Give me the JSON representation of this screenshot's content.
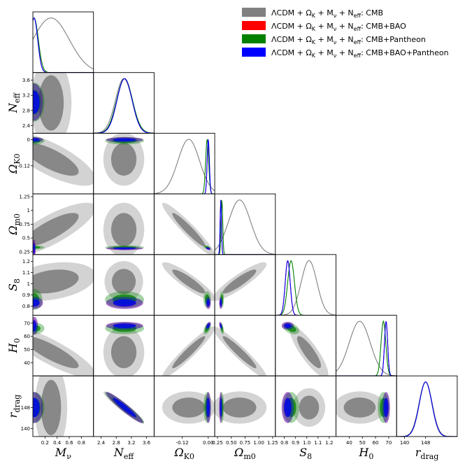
{
  "chart_data": {
    "type": "triangle-corner-plot",
    "parameters": [
      {
        "name": "M_nu",
        "label": "M",
        "sub": "ν",
        "range": [
          0,
          1.0
        ],
        "ticks": [
          0.2,
          0.4,
          0.6,
          0.8
        ],
        "tick_labels": [
          "0.2",
          "0.4",
          "0.6",
          "0.8"
        ]
      },
      {
        "name": "N_eff",
        "label": "N",
        "sub": "eff",
        "range": [
          2.2,
          3.8
        ],
        "ticks": [
          2.4,
          2.8,
          3.2,
          3.6
        ],
        "tick_labels": [
          "2.4",
          "2.8",
          "3.2",
          "3.6"
        ]
      },
      {
        "name": "Omega_K0",
        "label": "Ω",
        "sub": "K0",
        "range": [
          -0.25,
          0.03
        ],
        "ticks": [
          -0.12,
          0.0
        ],
        "tick_labels": [
          "-0.12",
          "0"
        ]
      },
      {
        "name": "Omega_m0",
        "label": "Ω",
        "sub": "m0",
        "range": [
          0.2,
          1.3
        ],
        "ticks": [
          0.25,
          0.5,
          0.75,
          1.0,
          1.25
        ],
        "tick_labels": [
          "0.25",
          "0.5",
          "0.75",
          "1",
          "1.25"
        ]
      },
      {
        "name": "S_8",
        "label": "S",
        "sub": "8",
        "range": [
          0.72,
          1.26
        ],
        "ticks": [
          0.8,
          0.9,
          1.0,
          1.1,
          1.2
        ],
        "tick_labels": [
          "0.8",
          "0.9",
          "1",
          "1.1",
          "1.2"
        ]
      },
      {
        "name": "H_0",
        "label": "H",
        "sub": "0",
        "range": [
          30,
          76
        ],
        "ticks": [
          40,
          50,
          60,
          70
        ],
        "tick_labels": [
          "40",
          "50",
          "60",
          "70"
        ]
      },
      {
        "name": "r_drag",
        "label": "r",
        "sub": "drag",
        "range": [
          137,
          160
        ],
        "ticks": [
          140,
          148
        ],
        "tick_labels": [
          "140",
          "148"
        ]
      }
    ],
    "bottom_tick_labels": [
      [
        "0.2",
        "0.4",
        "0.6",
        "0.8"
      ],
      [
        "2.4",
        "2.8",
        "3.2",
        "3.6"
      ],
      [
        "-0.12",
        "0.00"
      ],
      [
        "0.25",
        "0.50",
        "0.75",
        "1.00",
        "1.25"
      ],
      [
        "0.8",
        "0.9",
        "1.0",
        "1.1",
        "1.2"
      ],
      [
        "40",
        "50",
        "60",
        "70"
      ],
      [
        "140",
        "148"
      ]
    ],
    "series": [
      {
        "name": "ΛCDM + Ω_K + M_ν + N_eff: CMB",
        "legend": "ΛCDM + Ω",
        "color": "#808080",
        "mean": [
          0.3,
          3.0,
          -0.09,
          0.65,
          1.02,
          48,
          148
        ],
        "sigma": [
          0.3,
          0.22,
          0.05,
          0.2,
          0.07,
          8.0,
          2.5
        ],
        "corr": {
          "0-2": -0.75,
          "0-3": 0.8,
          "0-4": 0.3,
          "0-5": -0.85,
          "1-6": -0.95,
          "2-3": -0.95,
          "2-4": -0.9,
          "2-5": 0.95,
          "3-4": 0.9,
          "3-5": -0.95,
          "4-5": -0.85
        }
      },
      {
        "name": "ΛCDM + Ω_K + M_ν + N_eff: CMB+BAO",
        "color": "#ff0000",
        "mean": [
          0.02,
          3.02,
          0.0,
          0.31,
          0.83,
          68,
          148
        ],
        "sigma": [
          0.06,
          0.2,
          0.005,
          0.012,
          0.022,
          1.2,
          2.4
        ],
        "corr": {
          "1-6": -0.95,
          "2-3": -0.5,
          "2-5": 0.5,
          "3-5": -0.5
        }
      },
      {
        "name": "ΛCDM + Ω_K + M_ν + N_eff: CMB+Pantheon",
        "color": "#008000",
        "mean": [
          0.02,
          3.02,
          -0.005,
          0.33,
          0.86,
          66,
          148
        ],
        "sigma": [
          0.07,
          0.21,
          0.007,
          0.015,
          0.03,
          1.8,
          2.4
        ],
        "corr": {
          "1-6": -0.95,
          "2-3": -0.5,
          "2-5": 0.5,
          "3-5": -0.5,
          "4-5": -0.4
        }
      },
      {
        "name": "ΛCDM + Ω_K + M_ν + N_eff: CMB+BAO+Pantheon",
        "color": "#0000ff",
        "mean": [
          0.02,
          3.02,
          0.0,
          0.31,
          0.83,
          68,
          148
        ],
        "sigma": [
          0.06,
          0.2,
          0.005,
          0.012,
          0.022,
          1.2,
          2.4
        ],
        "corr": {
          "1-6": -0.95,
          "2-3": -0.5,
          "2-5": 0.5,
          "3-5": -0.5
        }
      }
    ],
    "legend_placement": "top-right",
    "grid": false,
    "contours": "68% and 95% filled",
    "diagonal": "1D marginalized posteriors"
  },
  "legend": {
    "items": [
      {
        "prefix": "ΛCDM + Ω",
        "color": "#808080",
        "suffix": ": CMB"
      },
      {
        "prefix": "ΛCDM + Ω",
        "color": "#ff0000",
        "suffix": ": CMB+BAO"
      },
      {
        "prefix": "ΛCDM + Ω",
        "color": "#008000",
        "suffix": ": CMB+Pantheon"
      },
      {
        "prefix": "ΛCDM + Ω",
        "color": "#0000ff",
        "suffix": ": CMB+BAO+Pantheon"
      }
    ],
    "mid1": " + M",
    "mid2": " + N",
    "sub_K": "K",
    "sub_nu": "ν",
    "sub_eff": "eff"
  }
}
